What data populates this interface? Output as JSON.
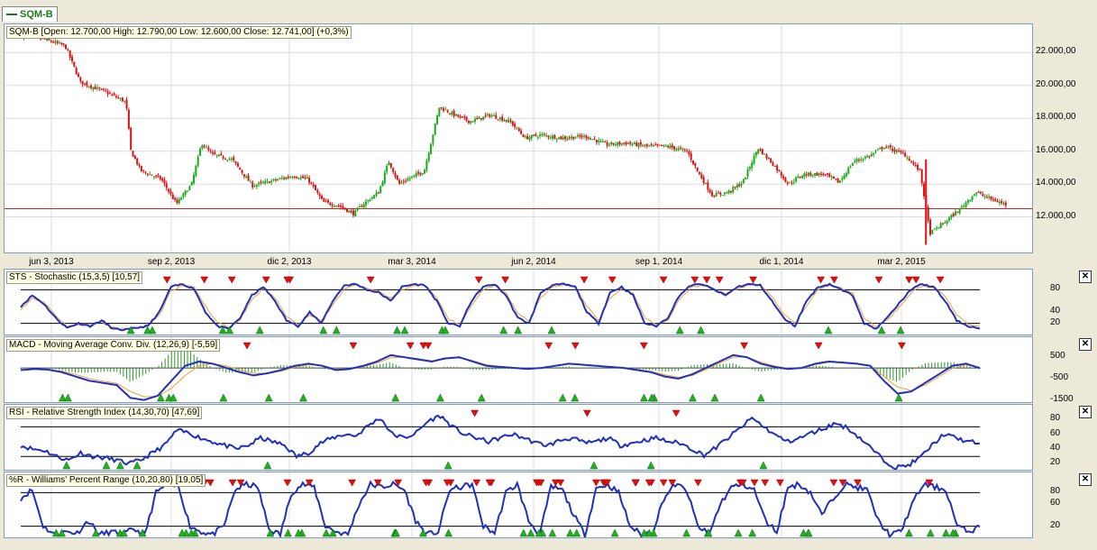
{
  "tab": {
    "label": "SQM-B",
    "color": "#1a7a1a"
  },
  "panes": {
    "price": {
      "label": "SQM-B [Open: 12.700,00  High: 12.790,00  Low: 12.600,00  Close: 12.741,00] (+0,3%)"
    },
    "sts": {
      "label": "STS - Stochastic (15,3,5) [10,57]"
    },
    "macd": {
      "label": "MACD - Moving Average Conv. Div. (12,26,9) [-5,59]"
    },
    "rsi": {
      "label": "RSI - Relative Strength Index (14,30,70) [47,69]"
    },
    "wr": {
      "label": "%R - Williams' Percent Range (10,20,80) [19,05]"
    }
  },
  "close_symbol": "✕",
  "chart_data": [
    {
      "type": "candlestick",
      "name": "SQM-B",
      "x_ticks": [
        "jun 3, 2013",
        "sep 2, 2013",
        "dic 2, 2013",
        "mar 3, 2014",
        "jun 2, 2014",
        "sep 1, 2014",
        "dic 1, 2014",
        "mar 2, 2015"
      ],
      "y_ticks": [
        "22.000,00",
        "20.000,00",
        "18.000,00",
        "16.000,00",
        "14.000,00",
        "12.000,00"
      ],
      "ylim": [
        10000,
        23500
      ],
      "reference_line": 12500,
      "close_path": [
        [
          0,
          23000
        ],
        [
          5,
          22800
        ],
        [
          9,
          22400
        ],
        [
          12,
          20200
        ],
        [
          17,
          19600
        ],
        [
          21,
          19000
        ],
        [
          22,
          16000
        ],
        [
          24,
          14800
        ],
        [
          28,
          14300
        ],
        [
          31,
          12800
        ],
        [
          34,
          14000
        ],
        [
          36,
          16500
        ],
        [
          38,
          15800
        ],
        [
          42,
          15500
        ],
        [
          46,
          13900
        ],
        [
          50,
          14200
        ],
        [
          54,
          14500
        ],
        [
          57,
          14300
        ],
        [
          60,
          12900
        ],
        [
          63,
          12700
        ],
        [
          66,
          12200
        ],
        [
          68,
          12800
        ],
        [
          71,
          13500
        ],
        [
          73,
          15400
        ],
        [
          75,
          14000
        ],
        [
          78,
          14500
        ],
        [
          80,
          14800
        ],
        [
          83,
          18700
        ],
        [
          86,
          18200
        ],
        [
          89,
          17800
        ],
        [
          93,
          18200
        ],
        [
          97,
          17800
        ],
        [
          100,
          16800
        ],
        [
          103,
          17000
        ],
        [
          107,
          16800
        ],
        [
          112,
          16900
        ],
        [
          116,
          16400
        ],
        [
          120,
          16500
        ],
        [
          124,
          16300
        ],
        [
          128,
          16300
        ],
        [
          132,
          16000
        ],
        [
          134,
          14800
        ],
        [
          137,
          13300
        ],
        [
          140,
          13500
        ],
        [
          143,
          14100
        ],
        [
          146,
          16200
        ],
        [
          149,
          15200
        ],
        [
          152,
          14000
        ],
        [
          155,
          14600
        ],
        [
          159,
          14600
        ],
        [
          162,
          14100
        ],
        [
          165,
          15400
        ],
        [
          168,
          15700
        ],
        [
          171,
          16300
        ],
        [
          175,
          15800
        ],
        [
          178,
          14800
        ],
        [
          179,
          13000
        ],
        [
          180,
          11000
        ],
        [
          183,
          11700
        ],
        [
          186,
          12500
        ],
        [
          189,
          13500
        ],
        [
          192,
          13100
        ],
        [
          195,
          12741
        ]
      ],
      "colors": {
        "up": "#1aaa1a",
        "down": "#dd1111",
        "reference": "#cc2222"
      }
    },
    {
      "type": "line",
      "name": "STS - Stochastic (15,3,5)",
      "y_ticks": [
        80,
        40,
        20
      ],
      "ylim": [
        0,
        100
      ],
      "levels": [
        20,
        80
      ],
      "series": [
        {
          "values": [
            50,
            70,
            55,
            30,
            12,
            20,
            15,
            25,
            10,
            8,
            12,
            15,
            40,
            85,
            90,
            82,
            40,
            15,
            10,
            30,
            70,
            85,
            60,
            25,
            15,
            40,
            20,
            60,
            88,
            90,
            80,
            75,
            60,
            85,
            90,
            88,
            60,
            20,
            15,
            60,
            85,
            90,
            70,
            30,
            20,
            75,
            88,
            90,
            85,
            40,
            20,
            75,
            85,
            70,
            20,
            15,
            30,
            70,
            88,
            90,
            80,
            70,
            85,
            90,
            88,
            60,
            30,
            15,
            60,
            85,
            90,
            80,
            70,
            20,
            10,
            30,
            55,
            80,
            90,
            85,
            60,
            25,
            15,
            10.57
          ],
          "color": "#1f2fbf"
        },
        {
          "values": [
            45,
            65,
            58,
            35,
            15,
            18,
            17,
            22,
            12,
            10,
            12,
            14,
            35,
            78,
            88,
            85,
            50,
            22,
            12,
            27,
            62,
            82,
            65,
            32,
            18,
            35,
            24,
            52,
            82,
            88,
            82,
            77,
            64,
            80,
            87,
            88,
            66,
            28,
            18,
            52,
            80,
            88,
            74,
            38,
            24,
            66,
            85,
            88,
            86,
            50,
            26,
            66,
            82,
            74,
            30,
            18,
            26,
            62,
            84,
            88,
            82,
            73,
            82,
            88,
            88,
            68,
            38,
            20,
            52,
            80,
            88,
            83,
            74,
            30,
            14,
            26,
            48,
            74,
            86,
            86,
            68,
            35,
            19,
            14
          ],
          "color": "#f0a030"
        }
      ],
      "sell_markers": 27,
      "buy_markers": 20
    },
    {
      "type": "line",
      "name": "MACD - Moving Average Conv. Div. (12,26,9)",
      "y_ticks": [
        500,
        -500,
        -1500
      ],
      "ylim": [
        -1600,
        1100
      ],
      "series": [
        {
          "values": [
            -100,
            -50,
            -80,
            -200,
            -400,
            -600,
            -700,
            -800,
            -1400,
            -1500,
            -1300,
            -600,
            100,
            300,
            200,
            0,
            -200,
            -350,
            -250,
            -100,
            100,
            200,
            100,
            -100,
            -50,
            100,
            300,
            600,
            500,
            400,
            300,
            450,
            500,
            300,
            100,
            50,
            0,
            -50,
            0,
            100,
            200,
            150,
            100,
            50,
            0,
            -100,
            -200,
            -400,
            -500,
            -300,
            0,
            300,
            600,
            500,
            200,
            50,
            -50,
            0,
            200,
            300,
            250,
            200,
            100,
            -600,
            -1200,
            -1100,
            -700,
            -300,
            100,
            200,
            -5.59
          ],
          "color": "#1f2fbf"
        },
        {
          "values": [
            -80,
            -60,
            -70,
            -150,
            -300,
            -500,
            -620,
            -720,
            -1100,
            -1350,
            -1330,
            -950,
            -350,
            100,
            200,
            100,
            -100,
            -250,
            -260,
            -160,
            40,
            150,
            120,
            -50,
            -60,
            60,
            230,
            480,
            500,
            440,
            330,
            420,
            480,
            340,
            150,
            70,
            20,
            -30,
            -10,
            80,
            170,
            160,
            110,
            60,
            10,
            -70,
            -160,
            -320,
            -440,
            -360,
            -80,
            220,
            500,
            510,
            280,
            90,
            -20,
            -10,
            150,
            270,
            260,
            210,
            120,
            -400,
            -900,
            -1050,
            -800,
            -420,
            -20,
            140,
            30
          ],
          "color": "#f0a030"
        }
      ],
      "sell_markers": 15,
      "buy_markers": 20
    },
    {
      "type": "line",
      "name": "RSI - Relative Strength Index (14,30,70)",
      "y_ticks": [
        80,
        60,
        40,
        20
      ],
      "ylim": [
        12,
        90
      ],
      "levels": [
        30,
        70
      ],
      "series": [
        {
          "values": [
            45,
            40,
            38,
            30,
            25,
            35,
            30,
            28,
            25,
            20,
            25,
            35,
            45,
            65,
            62,
            55,
            50,
            45,
            40,
            45,
            55,
            50,
            45,
            30,
            35,
            48,
            55,
            60,
            58,
            72,
            82,
            60,
            55,
            62,
            78,
            85,
            70,
            60,
            55,
            50,
            55,
            60,
            55,
            48,
            45,
            52,
            55,
            48,
            50,
            55,
            45,
            48,
            52,
            55,
            50,
            48,
            40,
            32,
            42,
            55,
            68,
            82,
            70,
            58,
            50,
            55,
            62,
            68,
            75,
            68,
            55,
            40,
            25,
            15,
            18,
            28,
            45,
            60,
            55,
            50,
            47.69
          ],
          "color": "#1f2fbf"
        }
      ],
      "sell_markers": 4,
      "buy_markers": 9
    },
    {
      "type": "line",
      "name": "%R - Williams' Percent Range (10,20,80)",
      "y_ticks": [
        80,
        60,
        20
      ],
      "ylim": [
        0,
        100
      ],
      "levels": [
        20,
        80
      ],
      "series": [
        {
          "values": [
            70,
            85,
            20,
            5,
            10,
            8,
            30,
            5,
            10,
            5,
            15,
            5,
            80,
            95,
            90,
            20,
            10,
            5,
            20,
            85,
            95,
            90,
            15,
            5,
            80,
            95,
            90,
            20,
            10,
            5,
            60,
            95,
            90,
            95,
            85,
            30,
            5,
            10,
            85,
            90,
            95,
            20,
            8,
            80,
            95,
            30,
            5,
            90,
            85,
            40,
            5,
            88,
            95,
            80,
            20,
            5,
            10,
            70,
            95,
            85,
            20,
            5,
            60,
            90,
            95,
            85,
            30,
            10,
            90,
            95,
            80,
            40,
            70,
            95,
            90,
            85,
            30,
            5,
            10,
            60,
            95,
            90,
            85,
            20,
            10,
            19.05
          ],
          "color": "#1f2fbf"
        }
      ],
      "sell_markers": 48,
      "buy_markers": 45
    }
  ]
}
